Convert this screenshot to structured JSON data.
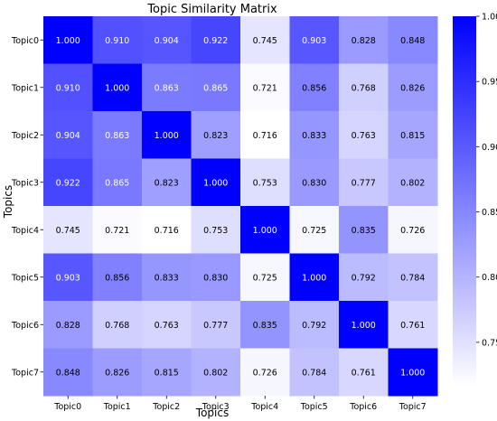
{
  "chart_data": {
    "type": "heatmap",
    "title": "Topic Similarity Matrix",
    "xlabel": "Topics",
    "ylabel": "Topics",
    "x_categories": [
      "Topic0",
      "Topic1",
      "Topic2",
      "Topic3",
      "Topic4",
      "Topic5",
      "Topic6",
      "Topic7"
    ],
    "y_categories": [
      "Topic0",
      "Topic1",
      "Topic2",
      "Topic3",
      "Topic4",
      "Topic5",
      "Topic6",
      "Topic7"
    ],
    "values": [
      [
        1.0,
        0.91,
        0.904,
        0.922,
        0.745,
        0.903,
        0.828,
        0.848
      ],
      [
        0.91,
        1.0,
        0.863,
        0.865,
        0.721,
        0.856,
        0.768,
        0.826
      ],
      [
        0.904,
        0.863,
        1.0,
        0.823,
        0.716,
        0.833,
        0.763,
        0.815
      ],
      [
        0.922,
        0.865,
        0.823,
        1.0,
        0.753,
        0.83,
        0.777,
        0.802
      ],
      [
        0.745,
        0.721,
        0.716,
        0.753,
        1.0,
        0.725,
        0.835,
        0.726
      ],
      [
        0.903,
        0.856,
        0.833,
        0.83,
        0.725,
        1.0,
        0.792,
        0.784
      ],
      [
        0.828,
        0.768,
        0.763,
        0.777,
        0.835,
        0.792,
        1.0,
        0.761
      ],
      [
        0.848,
        0.826,
        0.815,
        0.802,
        0.726,
        0.784,
        0.761,
        1.0
      ]
    ],
    "value_format": "3 decimals",
    "colormap": {
      "low": "#ffffff",
      "high": "#0000ff"
    },
    "color_range": [
      0.716,
      1.0
    ],
    "colorbar_ticks": [
      0.75,
      0.8,
      0.85,
      0.9,
      0.95,
      1.0
    ],
    "colorbar_tick_labels": [
      "0.75",
      "0.80",
      "0.85",
      "0.90",
      "0.95",
      "1.00"
    ],
    "annotations": true,
    "grid": false,
    "legend": "colorbar-right"
  }
}
